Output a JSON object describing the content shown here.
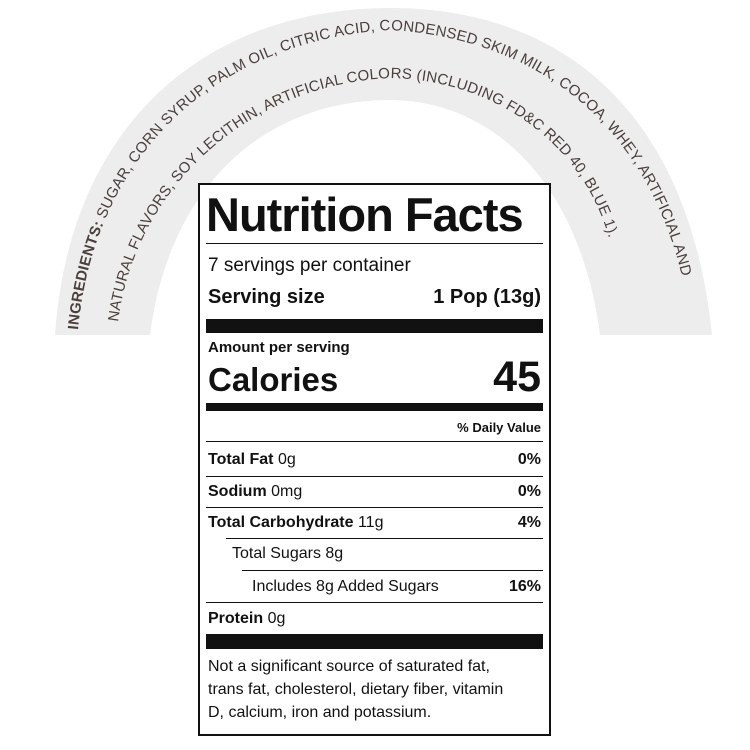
{
  "ingredients": {
    "line1_label": "INGREDIENTS:",
    "line1": "SUGAR, CORN SYRUP, PALM OIL, CITRIC ACID, CONDENSED SKIM MILK, COCOA, WHEY, ARTIFICIAL AND",
    "line2": "NATURAL FLAVORS, SOY LECITHIN, ARTIFICIAL COLORS (INCLUDING FD&C RED 40, BLUE 1)."
  },
  "nutrition": {
    "title": "Nutrition Facts",
    "servings_per_container": "7 servings per container",
    "serving_size_label": "Serving size",
    "serving_size_value": "1 Pop (13g)",
    "amount_per_serving": "Amount per serving",
    "calories_label": "Calories",
    "calories_value": "45",
    "daily_value_header": "% Daily Value",
    "rows": [
      {
        "label": "Total Fat",
        "amount": "0g",
        "dv": "0%"
      },
      {
        "label": "Sodium",
        "amount": "0mg",
        "dv": "0%"
      },
      {
        "label": "Total Carbohydrate",
        "amount": "11g",
        "dv": "4%"
      },
      {
        "label": "Total Sugars",
        "amount": "8g",
        "dv": ""
      },
      {
        "label": "Includes 8g Added Sugars",
        "amount": "",
        "dv": "16%"
      },
      {
        "label": "Protein",
        "amount": "0g",
        "dv": ""
      }
    ],
    "footnote_lines": [
      "Not a significant source of saturated fat,",
      "trans fat, cholesterol, dietary fiber, vitamin",
      "D, calcium, iron and potassium."
    ]
  }
}
